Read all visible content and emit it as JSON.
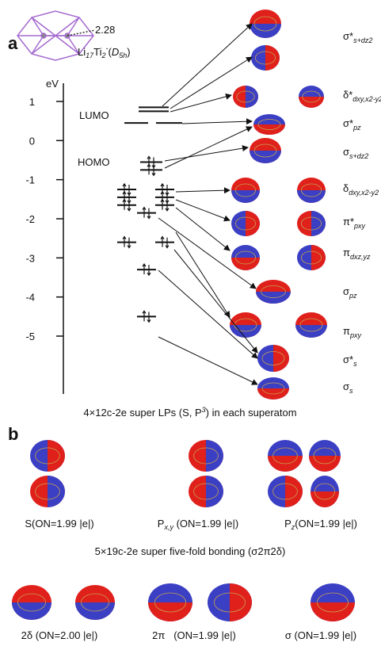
{
  "panel_a": {
    "label": "a",
    "structure": {
      "bond_length": "2.28",
      "formula": [
        "Li",
        "17",
        "Ti",
        "2",
        "-",
        "(",
        "D",
        "5h",
        ")"
      ]
    },
    "energy_axis": {
      "unit": "eV",
      "ticks": [
        1,
        0,
        -1,
        -2,
        -3,
        -4,
        -5
      ]
    },
    "lumo_label": "LUMO",
    "homo_label": "HOMO",
    "levels": [
      0.85,
      0.75,
      0.45,
      0.45,
      -0.55,
      -0.75,
      -1.25,
      -1.25,
      -1.45,
      -1.45,
      -1.65,
      -1.65,
      -1.85,
      -2.6,
      -2.6,
      -3.3,
      -4.5
    ],
    "orbitals": [
      {
        "symbol": "σ*",
        "sub": "s+dz2"
      },
      {
        "symbol": "δ*",
        "sub": "dxy,x2-y2"
      },
      {
        "symbol": "σ*",
        "sub": "pz"
      },
      {
        "symbol": "σ",
        "sub": "s+dz2"
      },
      {
        "symbol": "δ",
        "sub": "dxy,x2-y2"
      },
      {
        "symbol": "π*",
        "sub": "pxy"
      },
      {
        "symbol": "π",
        "sub": "dxz,yz"
      },
      {
        "symbol": "σ",
        "sub": "pz"
      },
      {
        "symbol": "π",
        "sub": "pxy"
      },
      {
        "symbol": "σ*",
        "sub": "s"
      },
      {
        "symbol": "σ",
        "sub": "s"
      }
    ],
    "caption": [
      "4×12c-2e super LPs (S, P",
      "3",
      ") in each superatom"
    ]
  },
  "panel_b": {
    "label": "b",
    "lp_orbitals": [
      [
        "S(ON=1.99 |e|)"
      ],
      [
        "P",
        "x,y",
        " (ON=1.99 |e|)"
      ],
      [
        "P",
        "z",
        "(ON=1.99 |e|)"
      ]
    ],
    "bonding_caption": "5×19c-2e super five-fold bonding (σ2π2δ)",
    "bonding_orbitals": [
      "2δ (ON=2.00 |e|)",
      "2π   (ON=1.99 |e|)",
      "σ (ON=1.99 |e|)"
    ]
  }
}
